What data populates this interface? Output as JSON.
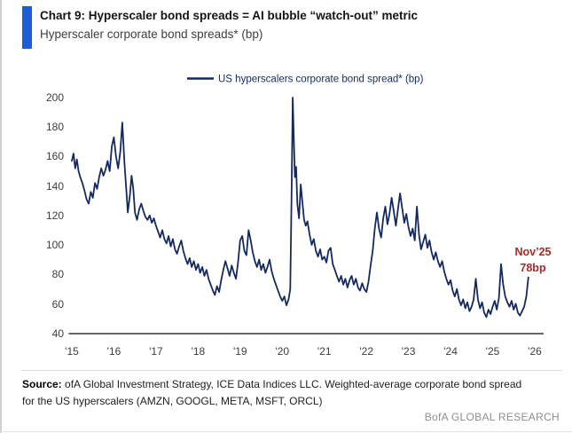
{
  "header": {
    "title": "Chart 9: Hyperscaler bond spreads = AI bubble “watch-out” metric",
    "subtitle": "Hyperscaler corporate bond spreads* (bp)",
    "accent_color": "#1b5ed6"
  },
  "chart_data": {
    "type": "line",
    "title": "Hyperscaler corporate bond spreads* (bp)",
    "legend": [
      "US hyperscalers corporate bond spread* (bp)"
    ],
    "legend_position": "top-center",
    "grid": false,
    "line_color": "#14295f",
    "xlabel": "",
    "ylabel": "bp",
    "ylim": [
      40,
      200
    ],
    "xlim": [
      2014.95,
      2026.1
    ],
    "y_ticks": [
      "200",
      "180",
      "160",
      "140",
      "120",
      "100",
      "80",
      "60",
      "40"
    ],
    "x_ticks": [
      "'15",
      "'16",
      "'17",
      "'18",
      "'19",
      "'20",
      "'21",
      "'22",
      "'23",
      "'24",
      "'25",
      "'26"
    ],
    "annotation": {
      "line1": "Nov’25",
      "line2": "78bp",
      "color": "#a52b2b",
      "x": 2025.85,
      "y": 78
    },
    "series": [
      {
        "name": "US hyperscalers corporate bond spread* (bp)",
        "points": [
          [
            2015.0,
            157
          ],
          [
            2015.04,
            162
          ],
          [
            2015.08,
            152
          ],
          [
            2015.12,
            158
          ],
          [
            2015.16,
            150
          ],
          [
            2015.2,
            146
          ],
          [
            2015.25,
            142
          ],
          [
            2015.3,
            137
          ],
          [
            2015.35,
            131
          ],
          [
            2015.4,
            128
          ],
          [
            2015.45,
            136
          ],
          [
            2015.5,
            132
          ],
          [
            2015.55,
            142
          ],
          [
            2015.6,
            138
          ],
          [
            2015.65,
            146
          ],
          [
            2015.7,
            152
          ],
          [
            2015.75,
            147
          ],
          [
            2015.8,
            151
          ],
          [
            2015.85,
            157
          ],
          [
            2015.9,
            150
          ],
          [
            2015.95,
            167
          ],
          [
            2016.0,
            173
          ],
          [
            2016.05,
            160
          ],
          [
            2016.1,
            152
          ],
          [
            2016.15,
            163
          ],
          [
            2016.2,
            183
          ],
          [
            2016.25,
            156
          ],
          [
            2016.3,
            135
          ],
          [
            2016.33,
            122
          ],
          [
            2016.38,
            134
          ],
          [
            2016.42,
            147
          ],
          [
            2016.46,
            138
          ],
          [
            2016.5,
            122
          ],
          [
            2016.55,
            117
          ],
          [
            2016.6,
            124
          ],
          [
            2016.65,
            128
          ],
          [
            2016.7,
            123
          ],
          [
            2016.75,
            119
          ],
          [
            2016.8,
            117
          ],
          [
            2016.85,
            120
          ],
          [
            2016.9,
            115
          ],
          [
            2016.95,
            118
          ],
          [
            2017.0,
            113
          ],
          [
            2017.05,
            109
          ],
          [
            2017.1,
            105
          ],
          [
            2017.15,
            110
          ],
          [
            2017.2,
            104
          ],
          [
            2017.25,
            101
          ],
          [
            2017.3,
            106
          ],
          [
            2017.35,
            99
          ],
          [
            2017.4,
            104
          ],
          [
            2017.45,
            97
          ],
          [
            2017.5,
            94
          ],
          [
            2017.55,
            99
          ],
          [
            2017.6,
            103
          ],
          [
            2017.65,
            96
          ],
          [
            2017.7,
            91
          ],
          [
            2017.75,
            87
          ],
          [
            2017.8,
            91
          ],
          [
            2017.85,
            85
          ],
          [
            2017.9,
            89
          ],
          [
            2017.95,
            83
          ],
          [
            2018.0,
            87
          ],
          [
            2018.05,
            81
          ],
          [
            2018.1,
            85
          ],
          [
            2018.15,
            79
          ],
          [
            2018.2,
            83
          ],
          [
            2018.25,
            77
          ],
          [
            2018.3,
            73
          ],
          [
            2018.35,
            69
          ],
          [
            2018.4,
            66
          ],
          [
            2018.45,
            72
          ],
          [
            2018.5,
            68
          ],
          [
            2018.55,
            76
          ],
          [
            2018.6,
            83
          ],
          [
            2018.65,
            89
          ],
          [
            2018.7,
            84
          ],
          [
            2018.75,
            79
          ],
          [
            2018.8,
            86
          ],
          [
            2018.85,
            81
          ],
          [
            2018.9,
            77
          ],
          [
            2018.95,
            88
          ],
          [
            2019.0,
            103
          ],
          [
            2019.05,
            106
          ],
          [
            2019.1,
            96
          ],
          [
            2019.15,
            93
          ],
          [
            2019.2,
            110
          ],
          [
            2019.25,
            103
          ],
          [
            2019.3,
            95
          ],
          [
            2019.35,
            89
          ],
          [
            2019.4,
            85
          ],
          [
            2019.45,
            90
          ],
          [
            2019.5,
            83
          ],
          [
            2019.55,
            87
          ],
          [
            2019.6,
            81
          ],
          [
            2019.65,
            85
          ],
          [
            2019.7,
            90
          ],
          [
            2019.75,
            82
          ],
          [
            2019.8,
            77
          ],
          [
            2019.85,
            73
          ],
          [
            2019.9,
            69
          ],
          [
            2019.95,
            65
          ],
          [
            2020.0,
            62
          ],
          [
            2020.05,
            65
          ],
          [
            2020.1,
            59
          ],
          [
            2020.15,
            63
          ],
          [
            2020.19,
            70
          ],
          [
            2020.22,
            130
          ],
          [
            2020.25,
            200
          ],
          [
            2020.28,
            168
          ],
          [
            2020.3,
            146
          ],
          [
            2020.33,
            153
          ],
          [
            2020.36,
            128
          ],
          [
            2020.4,
            118
          ],
          [
            2020.44,
            141
          ],
          [
            2020.48,
            129
          ],
          [
            2020.52,
            117
          ],
          [
            2020.56,
            113
          ],
          [
            2020.6,
            116
          ],
          [
            2020.65,
            107
          ],
          [
            2020.7,
            100
          ],
          [
            2020.75,
            104
          ],
          [
            2020.8,
            96
          ],
          [
            2020.85,
            92
          ],
          [
            2020.9,
            97
          ],
          [
            2020.95,
            90
          ],
          [
            2021.0,
            92
          ],
          [
            2021.05,
            88
          ],
          [
            2021.1,
            96
          ],
          [
            2021.15,
            98
          ],
          [
            2021.2,
            87
          ],
          [
            2021.25,
            83
          ],
          [
            2021.3,
            79
          ],
          [
            2021.35,
            75
          ],
          [
            2021.4,
            79
          ],
          [
            2021.45,
            73
          ],
          [
            2021.5,
            77
          ],
          [
            2021.55,
            71
          ],
          [
            2021.6,
            76
          ],
          [
            2021.65,
            79
          ],
          [
            2021.7,
            73
          ],
          [
            2021.75,
            77
          ],
          [
            2021.8,
            71
          ],
          [
            2021.85,
            69
          ],
          [
            2021.9,
            74
          ],
          [
            2021.95,
            70
          ],
          [
            2022.0,
            68
          ],
          [
            2022.05,
            75
          ],
          [
            2022.1,
            86
          ],
          [
            2022.15,
            96
          ],
          [
            2022.2,
            111
          ],
          [
            2022.25,
            122
          ],
          [
            2022.3,
            111
          ],
          [
            2022.35,
            105
          ],
          [
            2022.4,
            118
          ],
          [
            2022.45,
            126
          ],
          [
            2022.5,
            114
          ],
          [
            2022.55,
            121
          ],
          [
            2022.6,
            132
          ],
          [
            2022.65,
            123
          ],
          [
            2022.7,
            113
          ],
          [
            2022.75,
            124
          ],
          [
            2022.8,
            135
          ],
          [
            2022.85,
            125
          ],
          [
            2022.9,
            115
          ],
          [
            2022.95,
            121
          ],
          [
            2023.0,
            112
          ],
          [
            2023.05,
            106
          ],
          [
            2023.1,
            111
          ],
          [
            2023.15,
            103
          ],
          [
            2023.2,
            126
          ],
          [
            2023.25,
            107
          ],
          [
            2023.3,
            97
          ],
          [
            2023.35,
            102
          ],
          [
            2023.4,
            107
          ],
          [
            2023.45,
            98
          ],
          [
            2023.5,
            103
          ],
          [
            2023.55,
            95
          ],
          [
            2023.6,
            90
          ],
          [
            2023.65,
            95
          ],
          [
            2023.7,
            89
          ],
          [
            2023.75,
            85
          ],
          [
            2023.8,
            89
          ],
          [
            2023.85,
            82
          ],
          [
            2023.9,
            77
          ],
          [
            2023.95,
            73
          ],
          [
            2024.0,
            76
          ],
          [
            2024.05,
            69
          ],
          [
            2024.1,
            65
          ],
          [
            2024.15,
            70
          ],
          [
            2024.2,
            63
          ],
          [
            2024.25,
            59
          ],
          [
            2024.3,
            63
          ],
          [
            2024.35,
            57
          ],
          [
            2024.4,
            61
          ],
          [
            2024.45,
            55
          ],
          [
            2024.5,
            58
          ],
          [
            2024.55,
            63
          ],
          [
            2024.6,
            77
          ],
          [
            2024.65,
            63
          ],
          [
            2024.7,
            57
          ],
          [
            2024.75,
            61
          ],
          [
            2024.8,
            54
          ],
          [
            2024.85,
            51
          ],
          [
            2024.9,
            56
          ],
          [
            2024.95,
            53
          ],
          [
            2025.0,
            58
          ],
          [
            2025.05,
            62
          ],
          [
            2025.1,
            56
          ],
          [
            2025.15,
            64
          ],
          [
            2025.2,
            87
          ],
          [
            2025.25,
            73
          ],
          [
            2025.3,
            65
          ],
          [
            2025.35,
            61
          ],
          [
            2025.4,
            58
          ],
          [
            2025.45,
            62
          ],
          [
            2025.5,
            56
          ],
          [
            2025.55,
            60
          ],
          [
            2025.6,
            54
          ],
          [
            2025.65,
            52
          ],
          [
            2025.7,
            55
          ],
          [
            2025.75,
            58
          ],
          [
            2025.8,
            65
          ],
          [
            2025.85,
            78
          ]
        ]
      }
    ]
  },
  "footer": {
    "source_bold": "Source:",
    "source_text": " ofA Global Investment Strategy, ICE Data Indices LLC. Weighted-average corporate bond spread for the US hyperscalers (AMZN, GOOGL, META, MSFT, ORCL)",
    "brand": "BofA GLOBAL RESEARCH"
  }
}
